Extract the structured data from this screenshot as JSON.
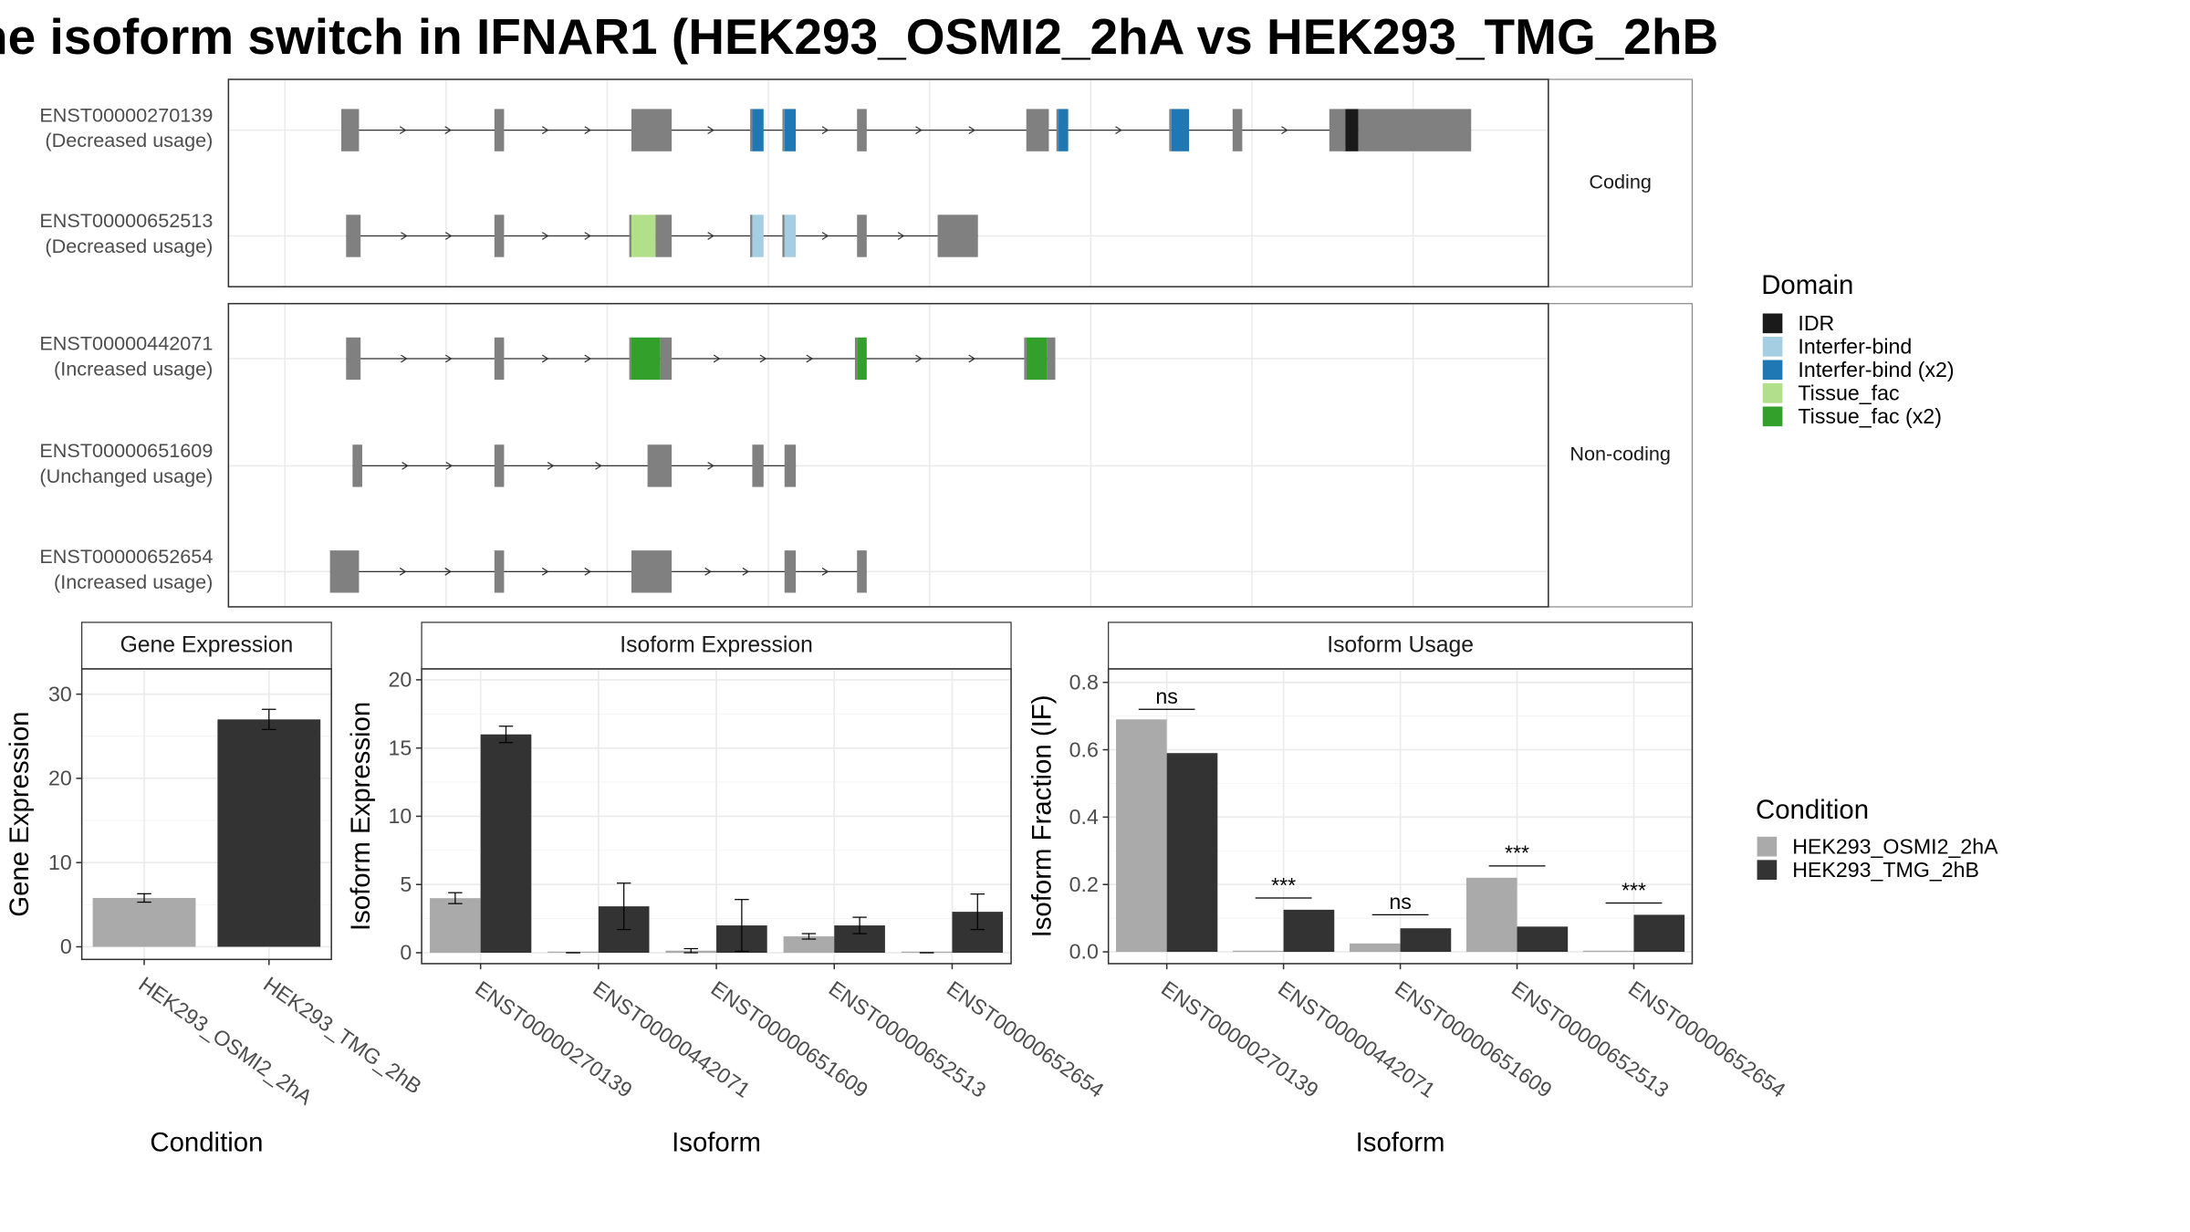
{
  "title": "he isoform switch in IFNAR1 (HEK293_OSMI2_2hA vs HEK293_TMG_2hB",
  "colors": {
    "exon": "#808080",
    "IDR": "#1a1a1a",
    "Interfer-bind": "#a6cee3",
    "Interfer-bind (x2)": "#1f78b4",
    "Tissue_fac": "#b2df8a",
    "Tissue_fac (x2)": "#33a02c",
    "cond_a": "#aaaaaa",
    "cond_b": "#333333"
  },
  "structure": {
    "panels": [
      {
        "strip": "Coding",
        "transcripts": [
          {
            "id": "ENST00000270139",
            "usage": "(Decreased usage)",
            "exons": [
              {
                "from": 0.35,
                "to": 0.46
              },
              {
                "from": 1.3,
                "to": 1.36
              },
              {
                "from": 2.15,
                "to": 2.4
              },
              {
                "from": 2.9,
                "to": 2.97,
                "domain": "Interfer-bind (x2)"
              },
              {
                "from": 3.1,
                "to": 3.17,
                "domain": "Interfer-bind (x2)"
              },
              {
                "from": 3.55,
                "to": 3.61
              },
              {
                "from": 4.6,
                "to": 4.74
              },
              {
                "from": 4.8,
                "to": 4.86,
                "domain": "Interfer-bind (x2)"
              },
              {
                "from": 5.5,
                "to": 5.61,
                "domain": "Interfer-bind (x2)"
              },
              {
                "from": 5.88,
                "to": 5.94
              },
              {
                "from": 6.48,
                "to": 6.58
              },
              {
                "from": 6.58,
                "to": 6.66,
                "domain": "IDR"
              },
              {
                "from": 6.66,
                "to": 7.36
              }
            ]
          },
          {
            "id": "ENST00000652513",
            "usage": "(Decreased usage)",
            "exons": [
              {
                "from": 0.38,
                "to": 0.47
              },
              {
                "from": 1.3,
                "to": 1.36
              },
              {
                "from": 2.15,
                "to": 2.3,
                "domain": "Tissue_fac"
              },
              {
                "from": 2.3,
                "to": 2.4
              },
              {
                "from": 2.9,
                "to": 2.97,
                "domain": "Interfer-bind"
              },
              {
                "from": 3.1,
                "to": 3.17,
                "domain": "Interfer-bind"
              },
              {
                "from": 3.55,
                "to": 3.61
              },
              {
                "from": 4.05,
                "to": 4.3
              }
            ]
          }
        ]
      },
      {
        "strip": "Non-coding",
        "transcripts": [
          {
            "id": "ENST00000442071",
            "usage": "(Increased usage)",
            "exons": [
              {
                "from": 0.38,
                "to": 0.47
              },
              {
                "from": 1.3,
                "to": 1.36
              },
              {
                "from": 2.15,
                "to": 2.33,
                "domain": "Tissue_fac (x2)"
              },
              {
                "from": 2.33,
                "to": 2.4
              },
              {
                "from": 3.55,
                "to": 3.61,
                "domain": "Tissue_fac (x2)"
              },
              {
                "from": 4.6,
                "to": 4.73,
                "domain": "Tissue_fac (x2)"
              },
              {
                "from": 4.73,
                "to": 4.78
              }
            ]
          },
          {
            "id": "ENST00000651609",
            "usage": "(Unchanged usage)",
            "exons": [
              {
                "from": 0.42,
                "to": 0.48
              },
              {
                "from": 1.3,
                "to": 1.36
              },
              {
                "from": 2.25,
                "to": 2.4
              },
              {
                "from": 2.9,
                "to": 2.97
              },
              {
                "from": 3.1,
                "to": 3.17
              }
            ]
          },
          {
            "id": "ENST00000652654",
            "usage": "(Increased usage)",
            "exons": [
              {
                "from": 0.28,
                "to": 0.46
              },
              {
                "from": 1.3,
                "to": 1.36
              },
              {
                "from": 2.15,
                "to": 2.4
              },
              {
                "from": 3.1,
                "to": 3.17
              },
              {
                "from": 3.55,
                "to": 3.61
              }
            ]
          }
        ]
      }
    ],
    "domain_legend": {
      "title": "Domain",
      "items": [
        "IDR",
        "Interfer-bind",
        "Interfer-bind (x2)",
        "Tissue_fac",
        "Tissue_fac (x2)"
      ]
    }
  },
  "chart_data": [
    {
      "type": "bar",
      "title": "Gene Expression",
      "xlabel": "Condition",
      "ylabel": "Gene Expression",
      "ylim": [
        -1.5,
        33
      ],
      "yticks": [
        0,
        10,
        20,
        30
      ],
      "categories": [
        "HEK293_OSMI2_2hA",
        "HEK293_TMG_2hB"
      ],
      "values": [
        5.8,
        27.0
      ],
      "errors": [
        0.5,
        1.2
      ]
    },
    {
      "type": "bar",
      "title": "Isoform Expression",
      "xlabel": "Isoform",
      "ylabel": "Isoform Expression",
      "ylim": [
        -0.8,
        20.8
      ],
      "yticks": [
        0,
        5,
        10,
        15,
        20
      ],
      "categories": [
        "ENST00000270139",
        "ENST00000442071",
        "ENST00000651609",
        "ENST00000652513",
        "ENST00000652654"
      ],
      "series": [
        {
          "name": "HEK293_OSMI2_2hA",
          "values": [
            4.0,
            0.0,
            0.15,
            1.2,
            0.0
          ],
          "errors": [
            0.4,
            0.0,
            0.15,
            0.2,
            0.0
          ]
        },
        {
          "name": "HEK293_TMG_2hB",
          "values": [
            16.0,
            3.4,
            2.0,
            2.0,
            3.0
          ],
          "errors": [
            0.6,
            1.7,
            1.9,
            0.6,
            1.3
          ]
        }
      ]
    },
    {
      "type": "bar",
      "title": "Isoform Usage",
      "xlabel": "Isoform",
      "ylabel": "Isoform Fraction (IF)",
      "ylim": [
        -0.035,
        0.84
      ],
      "yticks": [
        0.0,
        0.2,
        0.4,
        0.6,
        0.8
      ],
      "ytick_labels": [
        "0.0",
        "0.2",
        "0.4",
        "0.6",
        "0.8"
      ],
      "categories": [
        "ENST00000270139",
        "ENST00000442071",
        "ENST00000651609",
        "ENST00000652513",
        "ENST00000652654"
      ],
      "series": [
        {
          "name": "HEK293_OSMI2_2hA",
          "values": [
            0.69,
            0.0,
            0.025,
            0.22,
            0.0
          ]
        },
        {
          "name": "HEK293_TMG_2hB",
          "values": [
            0.59,
            0.125,
            0.07,
            0.075,
            0.11
          ]
        }
      ],
      "significance": [
        "ns",
        "***",
        "ns",
        "***",
        "***"
      ],
      "significance_y": [
        0.72,
        0.16,
        0.11,
        0.255,
        0.145
      ]
    }
  ],
  "condition_legend": {
    "title": "Condition",
    "items": [
      "HEK293_OSMI2_2hA",
      "HEK293_TMG_2hB"
    ]
  }
}
